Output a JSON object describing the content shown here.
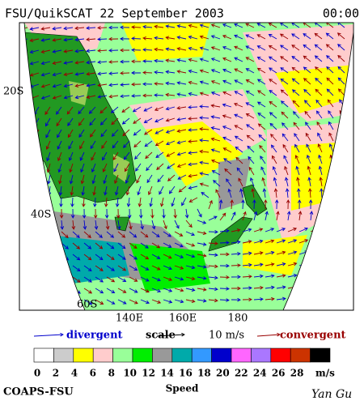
{
  "header": {
    "title": "FSU/QuikSCAT 22 September 2003",
    "time": "00:00"
  },
  "map": {
    "lat_labels": [
      "20S",
      "40S",
      "60S"
    ],
    "lon_labels": [
      "140E",
      "160E",
      "180"
    ]
  },
  "legend": {
    "divergent": "divergent",
    "divergent_color": "#0000cc",
    "scale": "scale",
    "scale_value": "10 m/s",
    "convergent": "convergent",
    "convergent_color": "#990000"
  },
  "colorbar": {
    "colors": [
      "#ffffff",
      "#cccccc",
      "#ffff00",
      "#ffcccc",
      "#99ff99",
      "#00ee00",
      "#999999",
      "#00aaaa",
      "#3399ff",
      "#0000cc",
      "#ff66ff",
      "#aa77ff",
      "#ff0000",
      "#cc3300",
      "#000000"
    ],
    "ticks": [
      0,
      2,
      4,
      6,
      8,
      10,
      12,
      14,
      16,
      18,
      20,
      22,
      24,
      26,
      28
    ],
    "unit": "m/s",
    "label": "Speed"
  },
  "footer": {
    "left": "COAPS-FSU",
    "right": "Yan Gu"
  }
}
